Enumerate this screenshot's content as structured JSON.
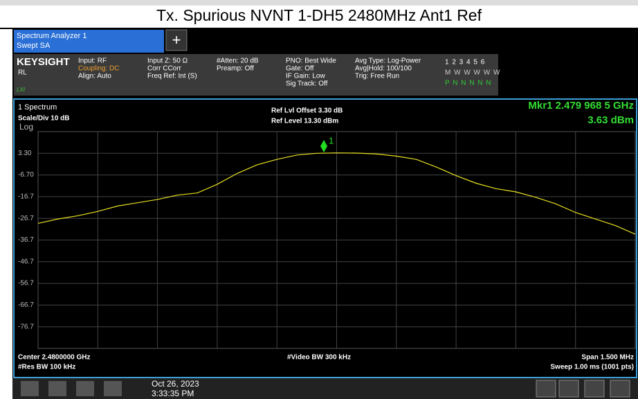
{
  "title": "Tx. Spurious NVNT 1-DH5 2480MHz Ant1 Ref",
  "tab": {
    "name": "Spectrum Analyzer 1",
    "mode": "Swept SA"
  },
  "brand": {
    "name": "KEYSIGHT",
    "rl": "RL",
    "lxi": "LXI"
  },
  "settings": [
    [
      "Input: RF",
      "Coupling: DC",
      "Align: Auto"
    ],
    [
      "Input Z: 50 Ω",
      "Corr CCorr",
      "Freq Ref: Int (S)"
    ],
    [
      "#Atten: 20 dB",
      "Preamp: Off"
    ],
    [
      "PNO: Best Wide",
      "Gate: Off",
      "IF Gain: Low",
      "Sig Track: Off"
    ],
    [
      "Avg Type: Log-Power",
      "Avg|Hold: 100/100",
      "Trig: Free Run"
    ]
  ],
  "trace_table": [
    "1 2 3 4 5 6",
    "M W W W W W",
    "P N N N N N"
  ],
  "plot": {
    "window": "1 Spectrum",
    "scale": "Scale/Div 10 dB",
    "log": "Log",
    "ref_offset": "Ref Lvl Offset 3.30 dB",
    "ref_level": "Ref Level 13.30 dBm",
    "marker_freq": "Mkr1 2.479 968 5 GHz",
    "marker_level": "3.63 dBm",
    "marker_label": "1",
    "center": "Center 2.4800000 GHz",
    "rbw": "#Res BW 100 kHz",
    "vbw": "#Video BW 300 kHz",
    "span": "Span 1.500 MHz",
    "sweep": "Sweep 1.00 ms (1001 pts)"
  },
  "taskbar": {
    "date": "Oct 26, 2023",
    "time": "3:33:35 PM"
  },
  "chart_data": {
    "type": "line",
    "ylim": [
      -86.7,
      13.3
    ],
    "yticks": [
      {
        "value": 3.3,
        "label": "3.30"
      },
      {
        "value": -6.7,
        "label": "-6.70"
      },
      {
        "value": -16.7,
        "label": "-16.7"
      },
      {
        "value": -26.7,
        "label": "-26.7"
      },
      {
        "value": -36.7,
        "label": "-36.7"
      },
      {
        "value": -46.7,
        "label": "-46.7"
      },
      {
        "value": -56.7,
        "label": "-56.7"
      },
      {
        "value": -66.7,
        "label": "-66.7"
      },
      {
        "value": -76.7,
        "label": "-76.7"
      }
    ],
    "xlim": [
      2479.25,
      2480.75
    ],
    "x": [
      2479.25,
      2479.3,
      2479.35,
      2479.4,
      2479.45,
      2479.5,
      2479.55,
      2479.6,
      2479.65,
      2479.7,
      2479.75,
      2479.8,
      2479.85,
      2479.9,
      2479.95,
      2480.0,
      2480.05,
      2480.1,
      2480.15,
      2480.2,
      2480.25,
      2480.3,
      2480.35,
      2480.4,
      2480.45,
      2480.5,
      2480.55,
      2480.6,
      2480.65,
      2480.7,
      2480.75
    ],
    "series": [
      {
        "name": "Trace 1",
        "color": "#e8e020",
        "values": [
          -29,
          -27,
          -25.5,
          -23.5,
          -21,
          -19.5,
          -18,
          -16,
          -15,
          -11,
          -6,
          -2,
          0.5,
          2.5,
          3.3,
          3.5,
          3.4,
          3,
          2,
          0.5,
          -3,
          -7,
          -10.5,
          -13,
          -14.5,
          -17,
          -20,
          -24,
          -27,
          -30,
          -34
        ]
      }
    ]
  }
}
